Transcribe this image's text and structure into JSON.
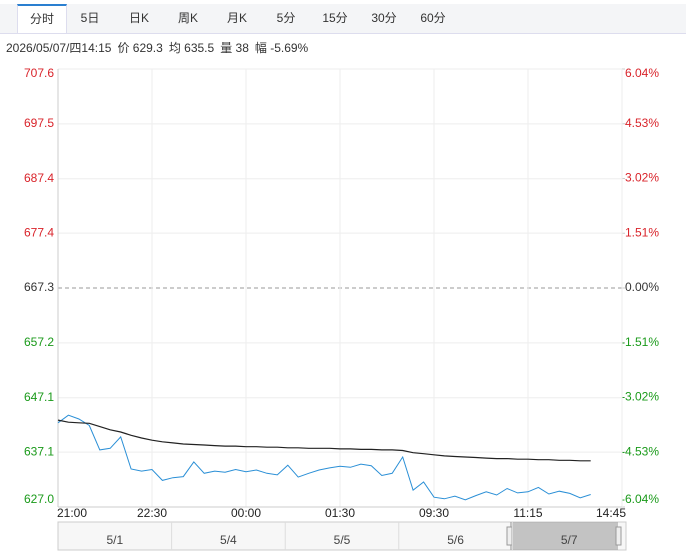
{
  "tabs": [
    "分时",
    "5日",
    "日K",
    "周K",
    "月K",
    "5分",
    "15分",
    "30分",
    "60分"
  ],
  "info": [
    "2026/05/07/四14:15",
    "价 629.3",
    "均 635.5",
    "量 38",
    "幅 -5.69%"
  ],
  "chart_data": {
    "type": "line",
    "x": [
      0,
      10,
      20,
      30,
      40,
      50,
      60,
      70,
      80,
      90,
      100,
      110,
      120,
      130,
      140,
      150,
      160,
      170,
      180,
      190,
      200,
      210,
      220,
      230,
      240,
      250,
      260,
      270,
      280,
      290,
      300,
      310,
      320,
      330,
      340,
      350,
      360,
      370,
      380,
      390,
      400,
      410,
      420,
      430,
      440,
      450,
      460,
      470,
      480,
      490,
      500,
      510
    ],
    "series": [
      {
        "name": "价",
        "color": "#2a8fd6",
        "values": [
          642.5,
          643.9,
          643.2,
          642.0,
          637.5,
          637.8,
          639.9,
          634.0,
          633.6,
          633.9,
          631.9,
          632.4,
          632.6,
          635.3,
          633.2,
          633.6,
          633.4,
          633.9,
          633.5,
          633.8,
          633.2,
          632.9,
          634.7,
          632.5,
          633.2,
          633.8,
          634.2,
          634.5,
          634.3,
          634.9,
          634.6,
          632.8,
          633.2,
          636.2,
          630.1,
          631.6,
          628.8,
          628.5,
          629.0,
          628.3,
          629.1,
          629.8,
          629.2,
          630.4,
          629.6,
          629.8,
          630.6,
          629.4,
          629.9,
          629.5,
          628.7,
          629.3
        ]
      },
      {
        "name": "均",
        "color": "#222222",
        "values": [
          643.0,
          642.6,
          642.5,
          642.4,
          641.8,
          641.2,
          640.8,
          640.2,
          639.7,
          639.3,
          639.0,
          638.8,
          638.6,
          638.5,
          638.4,
          638.3,
          638.2,
          638.2,
          638.1,
          638.1,
          638.0,
          638.0,
          637.9,
          637.9,
          637.8,
          637.8,
          637.8,
          637.7,
          637.7,
          637.6,
          637.6,
          637.5,
          637.5,
          637.4,
          637.0,
          636.8,
          636.6,
          636.4,
          636.3,
          636.2,
          636.1,
          636.0,
          635.9,
          635.9,
          635.8,
          635.8,
          635.7,
          635.7,
          635.6,
          635.6,
          635.5,
          635.5
        ]
      }
    ],
    "xlim": [
      0,
      540
    ],
    "xticks": [
      {
        "value": 0,
        "label": "21:00"
      },
      {
        "value": 90,
        "label": "22:30"
      },
      {
        "value": 180,
        "label": "00:00"
      },
      {
        "value": 270,
        "label": "01:30"
      },
      {
        "value": 360,
        "label": "09:30"
      },
      {
        "value": 450,
        "label": "11:15"
      },
      {
        "value": 540,
        "label": "14:45"
      }
    ],
    "ylim": [
      627.0,
      707.6
    ],
    "yticks": [
      {
        "value": 627.0,
        "label": "627.0"
      },
      637.1,
      647.1,
      657.2,
      667.3,
      677.4,
      687.4,
      697.5,
      707.6
    ],
    "y2lim": [
      -6.04,
      6.04
    ],
    "y2ticks": [
      {
        "value": -6.04,
        "label": "-6.04%"
      },
      {
        "value": -4.53,
        "label": "-4.53%"
      },
      {
        "value": -3.02,
        "label": "-3.02%"
      },
      {
        "value": -1.51,
        "label": "-1.51%"
      },
      {
        "value": 0,
        "label": "0.00%"
      },
      {
        "value": 1.51,
        "label": "1.51%"
      },
      {
        "value": 3.02,
        "label": "3.02%"
      },
      {
        "value": 4.53,
        "label": "4.53%"
      },
      {
        "value": 6.04,
        "label": "6.04%"
      }
    ],
    "up_color": "#d9232a",
    "down_color": "#1a9a1a",
    "flat_color": "#333333",
    "grid": true
  },
  "navigator": [
    "5/1",
    "5/4",
    "5/5",
    "5/6",
    "5/7"
  ]
}
